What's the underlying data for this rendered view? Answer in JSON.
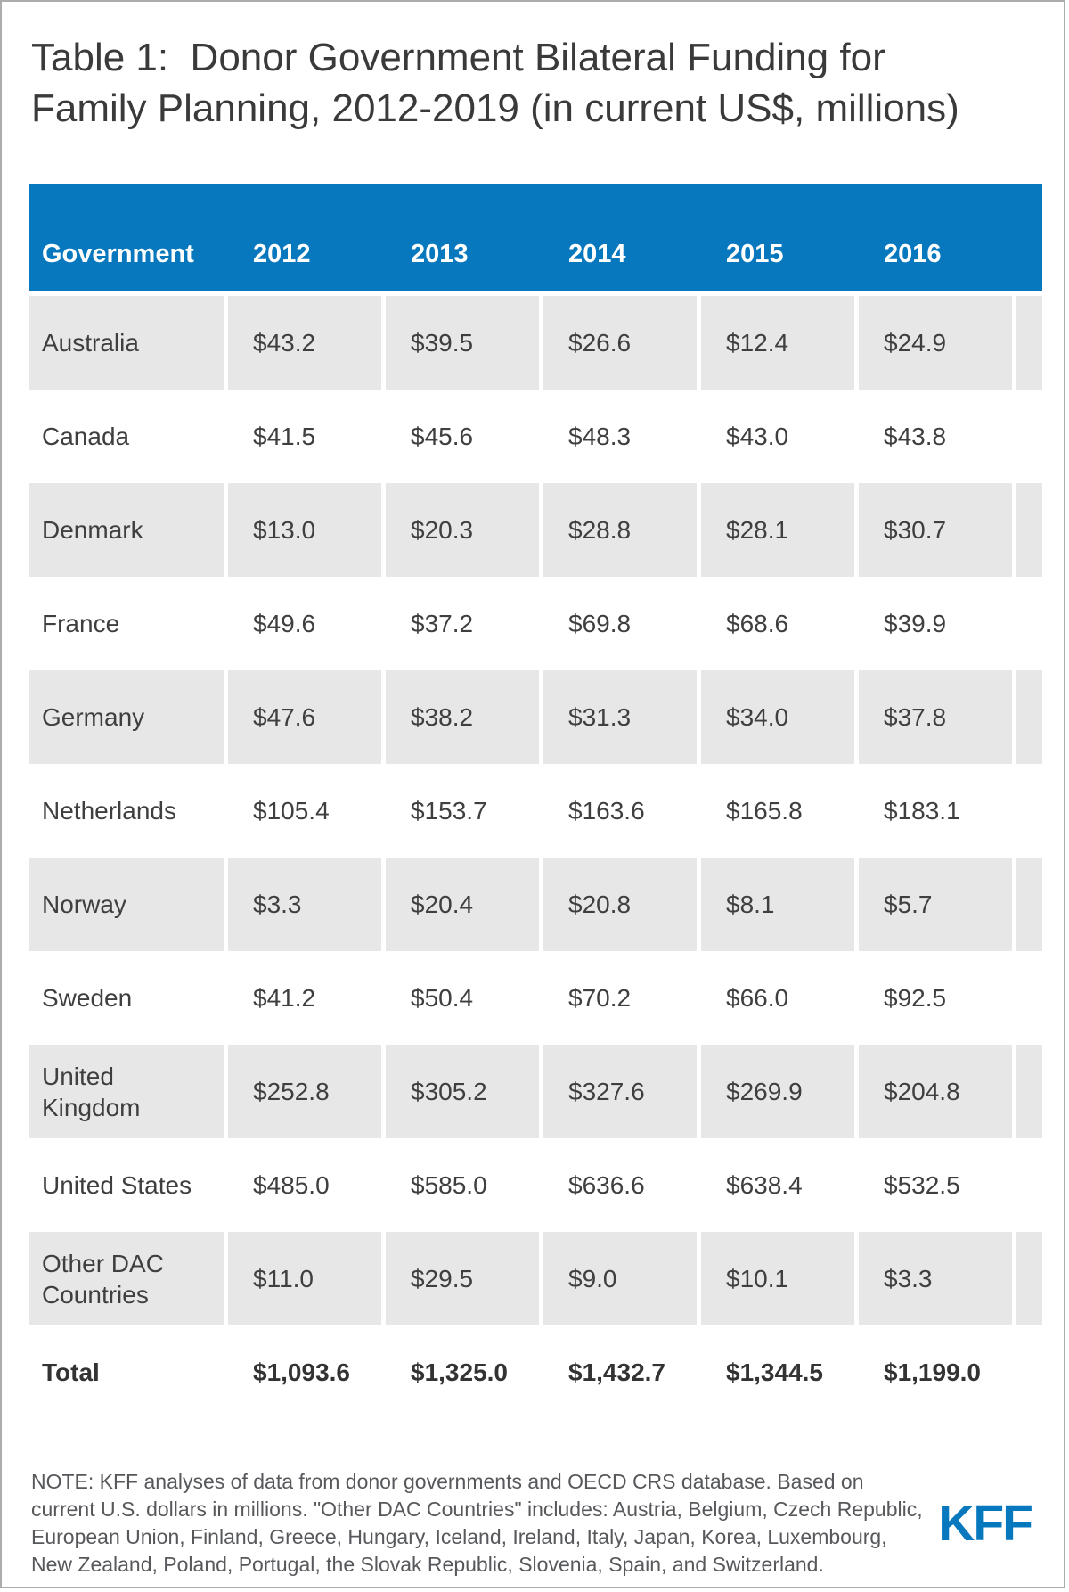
{
  "title": "Table 1:  Donor Government Bilateral Funding for Family Planning, 2012-2019 (in current US$, millions)",
  "table": {
    "columns": [
      "Government",
      "2012",
      "2013",
      "2014",
      "2015",
      "2016"
    ],
    "rows": [
      {
        "government": "Australia",
        "values": [
          "$43.2",
          "$39.5",
          "$26.6",
          "$12.4",
          "$24.9"
        ]
      },
      {
        "government": "Canada",
        "values": [
          "$41.5",
          "$45.6",
          "$48.3",
          "$43.0",
          "$43.8"
        ]
      },
      {
        "government": "Denmark",
        "values": [
          "$13.0",
          "$20.3",
          "$28.8",
          "$28.1",
          "$30.7"
        ]
      },
      {
        "government": "France",
        "values": [
          "$49.6",
          "$37.2",
          "$69.8",
          "$68.6",
          "$39.9"
        ]
      },
      {
        "government": "Germany",
        "values": [
          "$47.6",
          "$38.2",
          "$31.3",
          "$34.0",
          "$37.8"
        ]
      },
      {
        "government": "Netherlands",
        "values": [
          "$105.4",
          "$153.7",
          "$163.6",
          "$165.8",
          "$183.1"
        ]
      },
      {
        "government": "Norway",
        "values": [
          "$3.3",
          "$20.4",
          "$20.8",
          "$8.1",
          "$5.7"
        ]
      },
      {
        "government": "Sweden",
        "values": [
          "$41.2",
          "$50.4",
          "$70.2",
          "$66.0",
          "$92.5"
        ]
      },
      {
        "government": "United Kingdom",
        "values": [
          "$252.8",
          "$305.2",
          "$327.6",
          "$269.9",
          "$204.8"
        ]
      },
      {
        "government": "United States",
        "values": [
          "$485.0",
          "$585.0",
          "$636.6",
          "$638.4",
          "$532.5"
        ]
      },
      {
        "government": "Other DAC Countries",
        "values": [
          "$11.0",
          "$29.5",
          "$9.0",
          "$10.1",
          "$3.3"
        ]
      },
      {
        "government": "Total",
        "values": [
          "$1,093.6",
          "$1,325.0",
          "$1,432.7",
          "$1,344.5",
          "$1,199.0"
        ],
        "is_total": true
      }
    ]
  },
  "note": "NOTE: KFF analyses of data from donor governments and OECD CRS database. Based on current U.S. dollars in millions. \"Other DAC Countries\" includes: Austria, Belgium, Czech Republic, European Union, Finland, Greece, Hungary, Iceland, Ireland, Italy, Japan, Korea, Luxembourg, New Zealand, Poland, Portugal, the Slovak Republic, Slovenia, Spain, and Switzerland.",
  "logo": "KFF",
  "colors": {
    "header_blue": "#0878BE",
    "logo_blue": "#0878BE",
    "row_stripe_gray": "#E7E7E7",
    "text_dark": "#3F3F3F",
    "note_gray": "#56585B",
    "frame_gray": "#ACACAC"
  },
  "chart_data": {
    "type": "table",
    "title": "Table 1: Donor Government Bilateral Funding for Family Planning, 2012-2019 (in current US$, millions)",
    "units": "current US$, millions",
    "columns": [
      "Government",
      "2012",
      "2013",
      "2014",
      "2015",
      "2016"
    ],
    "rows": [
      [
        "Australia",
        43.2,
        39.5,
        26.6,
        12.4,
        24.9
      ],
      [
        "Canada",
        41.5,
        45.6,
        48.3,
        43.0,
        43.8
      ],
      [
        "Denmark",
        13.0,
        20.3,
        28.8,
        28.1,
        30.7
      ],
      [
        "France",
        49.6,
        37.2,
        69.8,
        68.6,
        39.9
      ],
      [
        "Germany",
        47.6,
        38.2,
        31.3,
        34.0,
        37.8
      ],
      [
        "Netherlands",
        105.4,
        153.7,
        163.6,
        165.8,
        183.1
      ],
      [
        "Norway",
        3.3,
        20.4,
        20.8,
        8.1,
        5.7
      ],
      [
        "Sweden",
        41.2,
        50.4,
        70.2,
        66.0,
        92.5
      ],
      [
        "United Kingdom",
        252.8,
        305.2,
        327.6,
        269.9,
        204.8
      ],
      [
        "United States",
        485.0,
        585.0,
        636.6,
        638.4,
        532.5
      ],
      [
        "Other DAC Countries",
        11.0,
        29.5,
        9.0,
        10.1,
        3.3
      ],
      [
        "Total",
        1093.6,
        1325.0,
        1432.7,
        1344.5,
        1199.0
      ]
    ]
  }
}
